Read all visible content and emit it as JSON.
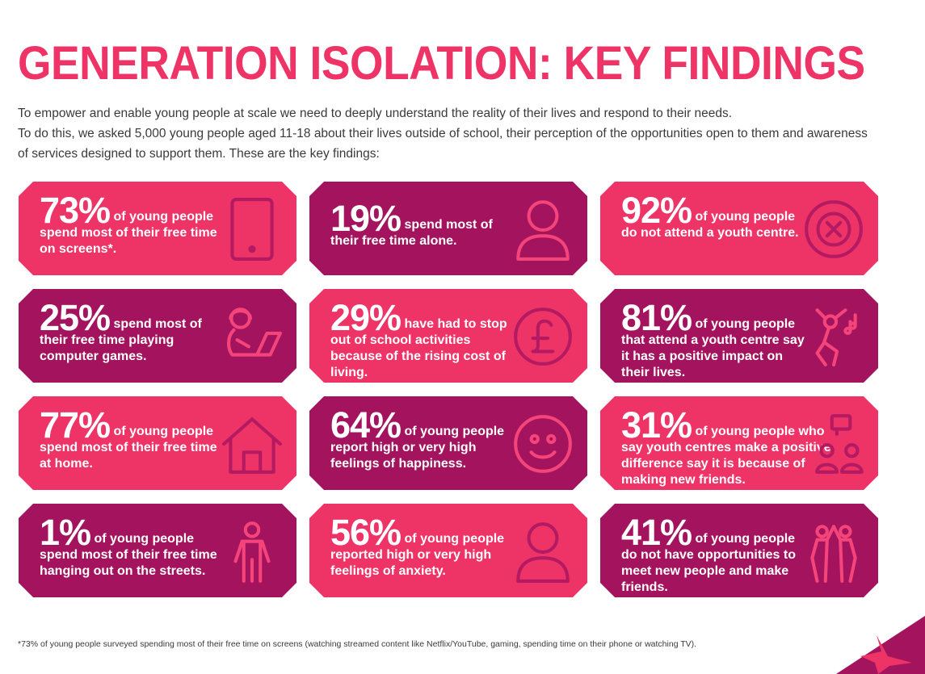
{
  "title": "GENERATION ISOLATION: KEY FINDINGS",
  "intro": [
    "To empower and enable young people at scale we need to deeply understand the reality of their lives and respond to their needs.",
    "To do this, we asked 5,000 young people aged 11-18 about their lives outside of school, their perception of the opportunities open to them and awareness of services designed to support them. These are the key findings:"
  ],
  "cards": [
    {
      "pct": "73%",
      "text": "of young people spend most of their free time on screens*.",
      "icon": "tablet-icon",
      "color": "#ee3366"
    },
    {
      "pct": "19%",
      "text": "spend most of their free time alone.",
      "icon": "person-icon",
      "color": "#a3135e"
    },
    {
      "pct": "92%",
      "text": "of young people do not attend a youth centre.",
      "icon": "x-circle-icon",
      "color": "#ee3366"
    },
    {
      "pct": "25%",
      "text": "spend most of their free time playing computer games.",
      "icon": "gamer-icon",
      "color": "#a3135e"
    },
    {
      "pct": "29%",
      "text": "have had to stop out of school activities because of the rising cost of living.",
      "icon": "pound-icon",
      "color": "#ee3366"
    },
    {
      "pct": "81%",
      "text": "of young people that attend a youth centre say it has a positive impact on their lives.",
      "icon": "dancer-icon",
      "color": "#a3135e"
    },
    {
      "pct": "77%",
      "text": "of young people spend most of their free time at home.",
      "icon": "house-icon",
      "color": "#ee3366"
    },
    {
      "pct": "64%",
      "text": "of young people report high or very high feelings of happiness.",
      "icon": "smiley-icon",
      "color": "#a3135e"
    },
    {
      "pct": "31%",
      "text": "of young people who say youth centres make a positive difference say it is because of making new friends.",
      "icon": "friends-chat-icon",
      "color": "#ee3366"
    },
    {
      "pct": "1%",
      "text": "of young people spend most of their free time hanging out on the streets.",
      "icon": "standing-person-icon",
      "color": "#a3135e"
    },
    {
      "pct": "56%",
      "text": "of young people reported high or very high feelings of anxiety.",
      "icon": "person-icon",
      "color": "#ee3366"
    },
    {
      "pct": "41%",
      "text": "of young people do not have opportunities to meet new people and make friends.",
      "icon": "high-five-icon",
      "color": "#a3135e"
    }
  ],
  "footnote": "*73% of young people surveyed spending most of their free time on screens (watching streamed content like Netflix/YouTube, gaming, spending time on their phone or watching TV)."
}
